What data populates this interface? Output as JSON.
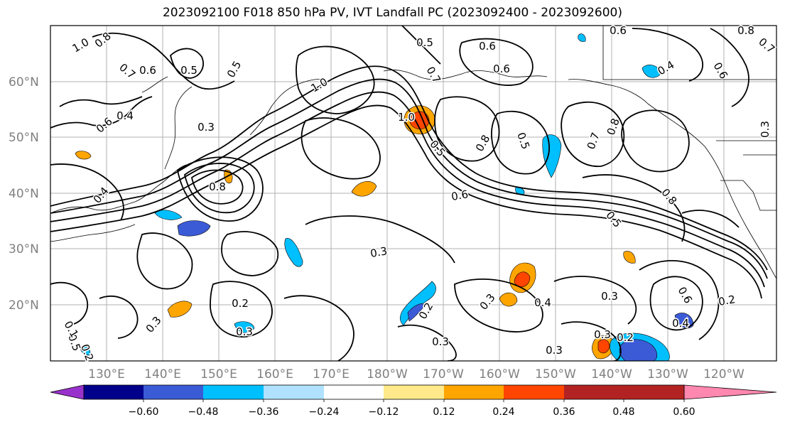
{
  "title": "2023092100 F018 850 hPa PV, IVT Landfall PC (2023092400 - 2023092600)",
  "lat_labels": [
    "60°N",
    "50°N",
    "40°N",
    "30°N",
    "20°N"
  ],
  "lon_labels": [
    "130°E",
    "140°E",
    "150°E",
    "160°E",
    "170°E",
    "180°W",
    "170°W",
    "160°W",
    "150°W",
    "140°W",
    "130°W",
    "120°W"
  ],
  "colorbar": {
    "colors": [
      "#9932cc",
      "#00008b",
      "#3b5bd6",
      "#00bfff",
      "#b0e2ff",
      "#ffffff",
      "#ffe98a",
      "#ffa500",
      "#ff4500",
      "#b22222",
      "#ff88b0"
    ],
    "tick_labels": [
      "−0.60",
      "−0.48",
      "−0.36",
      "−0.24",
      "−0.12",
      "0.12",
      "0.24",
      "0.36",
      "0.48",
      "0.60"
    ]
  },
  "contour_labels": [
    "1.0",
    "0.8",
    "0.7",
    "0.6",
    "0.5",
    "0.5",
    "0.6",
    "0.4",
    "0.3",
    "0.4",
    "1.0",
    "0.8",
    "1.0",
    "0.5",
    "0.6",
    "0.7",
    "0.5",
    "0.6",
    "0.5",
    "0.3",
    "0.3",
    "0.4",
    "0.2",
    "0.3",
    "0.3",
    "0.2",
    "0.3",
    "0.2",
    "0.3",
    "0.3",
    "0.3",
    "0.2",
    "0.6",
    "0.8",
    "0.7",
    "0.8",
    "0.4",
    "0.6",
    "0.8",
    "0.5",
    "0.6",
    "0.4",
    "0.5",
    "0.2",
    "0.1",
    "0.3",
    "0.8",
    "0.7",
    "0.6"
  ]
}
